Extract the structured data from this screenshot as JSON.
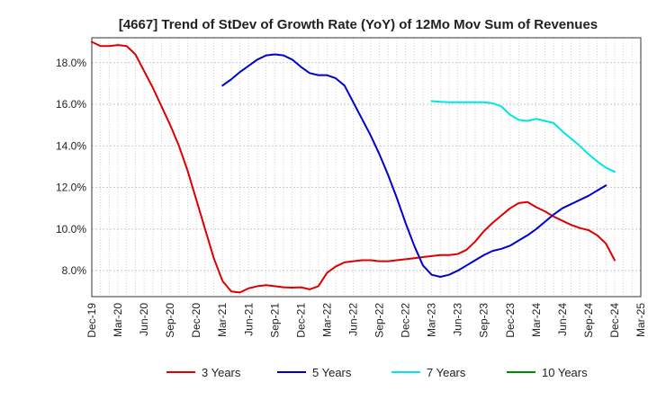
{
  "chart_data": {
    "type": "line",
    "title": "[4667]  Trend of StDev of Growth Rate (YoY) of 12Mo Mov Sum of Revenues",
    "xlabel": "",
    "ylabel": "",
    "x_tick_labels": [
      "Dec-19",
      "Mar-20",
      "Jun-20",
      "Sep-20",
      "Dec-20",
      "Mar-21",
      "Jun-21",
      "Sep-21",
      "Dec-21",
      "Mar-22",
      "Jun-22",
      "Sep-22",
      "Dec-22",
      "Mar-23",
      "Jun-23",
      "Sep-23",
      "Dec-23",
      "Mar-24",
      "Jun-24",
      "Sep-24",
      "Dec-24",
      "Mar-25"
    ],
    "y_ticks": [
      8.0,
      10.0,
      12.0,
      14.0,
      16.0,
      18.0
    ],
    "y_tick_labels": [
      "8.0%",
      "10.0%",
      "12.0%",
      "14.0%",
      "16.0%",
      "18.0%"
    ],
    "ylim": [
      6.75,
      19.2
    ],
    "x_index_range": [
      0,
      63
    ],
    "grid": true,
    "legend_position": "bottom",
    "series": [
      {
        "name": "3 Years",
        "color": "#dd0000",
        "start_index": 0,
        "values": [
          19.0,
          18.8,
          18.8,
          18.85,
          18.8,
          18.4,
          17.6,
          16.8,
          15.9,
          15.0,
          14.0,
          12.8,
          11.4,
          10.0,
          8.6,
          7.5,
          7.0,
          6.95,
          7.15,
          7.25,
          7.3,
          7.25,
          7.2,
          7.18,
          7.2,
          7.1,
          7.25,
          7.9,
          8.2,
          8.4,
          8.45,
          8.5,
          8.5,
          8.45,
          8.45,
          8.5,
          8.55,
          8.6,
          8.65,
          8.7,
          8.75,
          8.75,
          8.8,
          9.0,
          9.4,
          9.9,
          10.3,
          10.65,
          11.0,
          11.25,
          11.3,
          11.05,
          10.85,
          10.6,
          10.4,
          10.2,
          10.05,
          9.95,
          9.7,
          9.3,
          8.5
        ]
      },
      {
        "name": "5 Years",
        "color": "#0000cc",
        "start_index": 15,
        "values": [
          16.9,
          17.2,
          17.55,
          17.85,
          18.15,
          18.35,
          18.4,
          18.35,
          18.15,
          17.8,
          17.5,
          17.4,
          17.4,
          17.25,
          16.9,
          16.1,
          15.3,
          14.5,
          13.6,
          12.6,
          11.5,
          10.3,
          9.2,
          8.25,
          7.8,
          7.7,
          7.8,
          8.0,
          8.25,
          8.5,
          8.75,
          8.95,
          9.05,
          9.2,
          9.45,
          9.7,
          10.0,
          10.35,
          10.7,
          11.0,
          11.2,
          11.4,
          11.6,
          11.85,
          12.1
        ]
      },
      {
        "name": "7 Years",
        "color": "#00e5e5",
        "start_index": 39,
        "values": [
          16.15,
          16.12,
          16.1,
          16.1,
          16.1,
          16.1,
          16.1,
          16.05,
          15.9,
          15.5,
          15.25,
          15.2,
          15.3,
          15.2,
          15.1,
          14.7,
          14.35,
          14.0,
          13.6,
          13.25,
          12.95,
          12.75
        ]
      },
      {
        "name": "10 Years",
        "color": "#008800",
        "start_index": 0,
        "values": []
      }
    ]
  }
}
